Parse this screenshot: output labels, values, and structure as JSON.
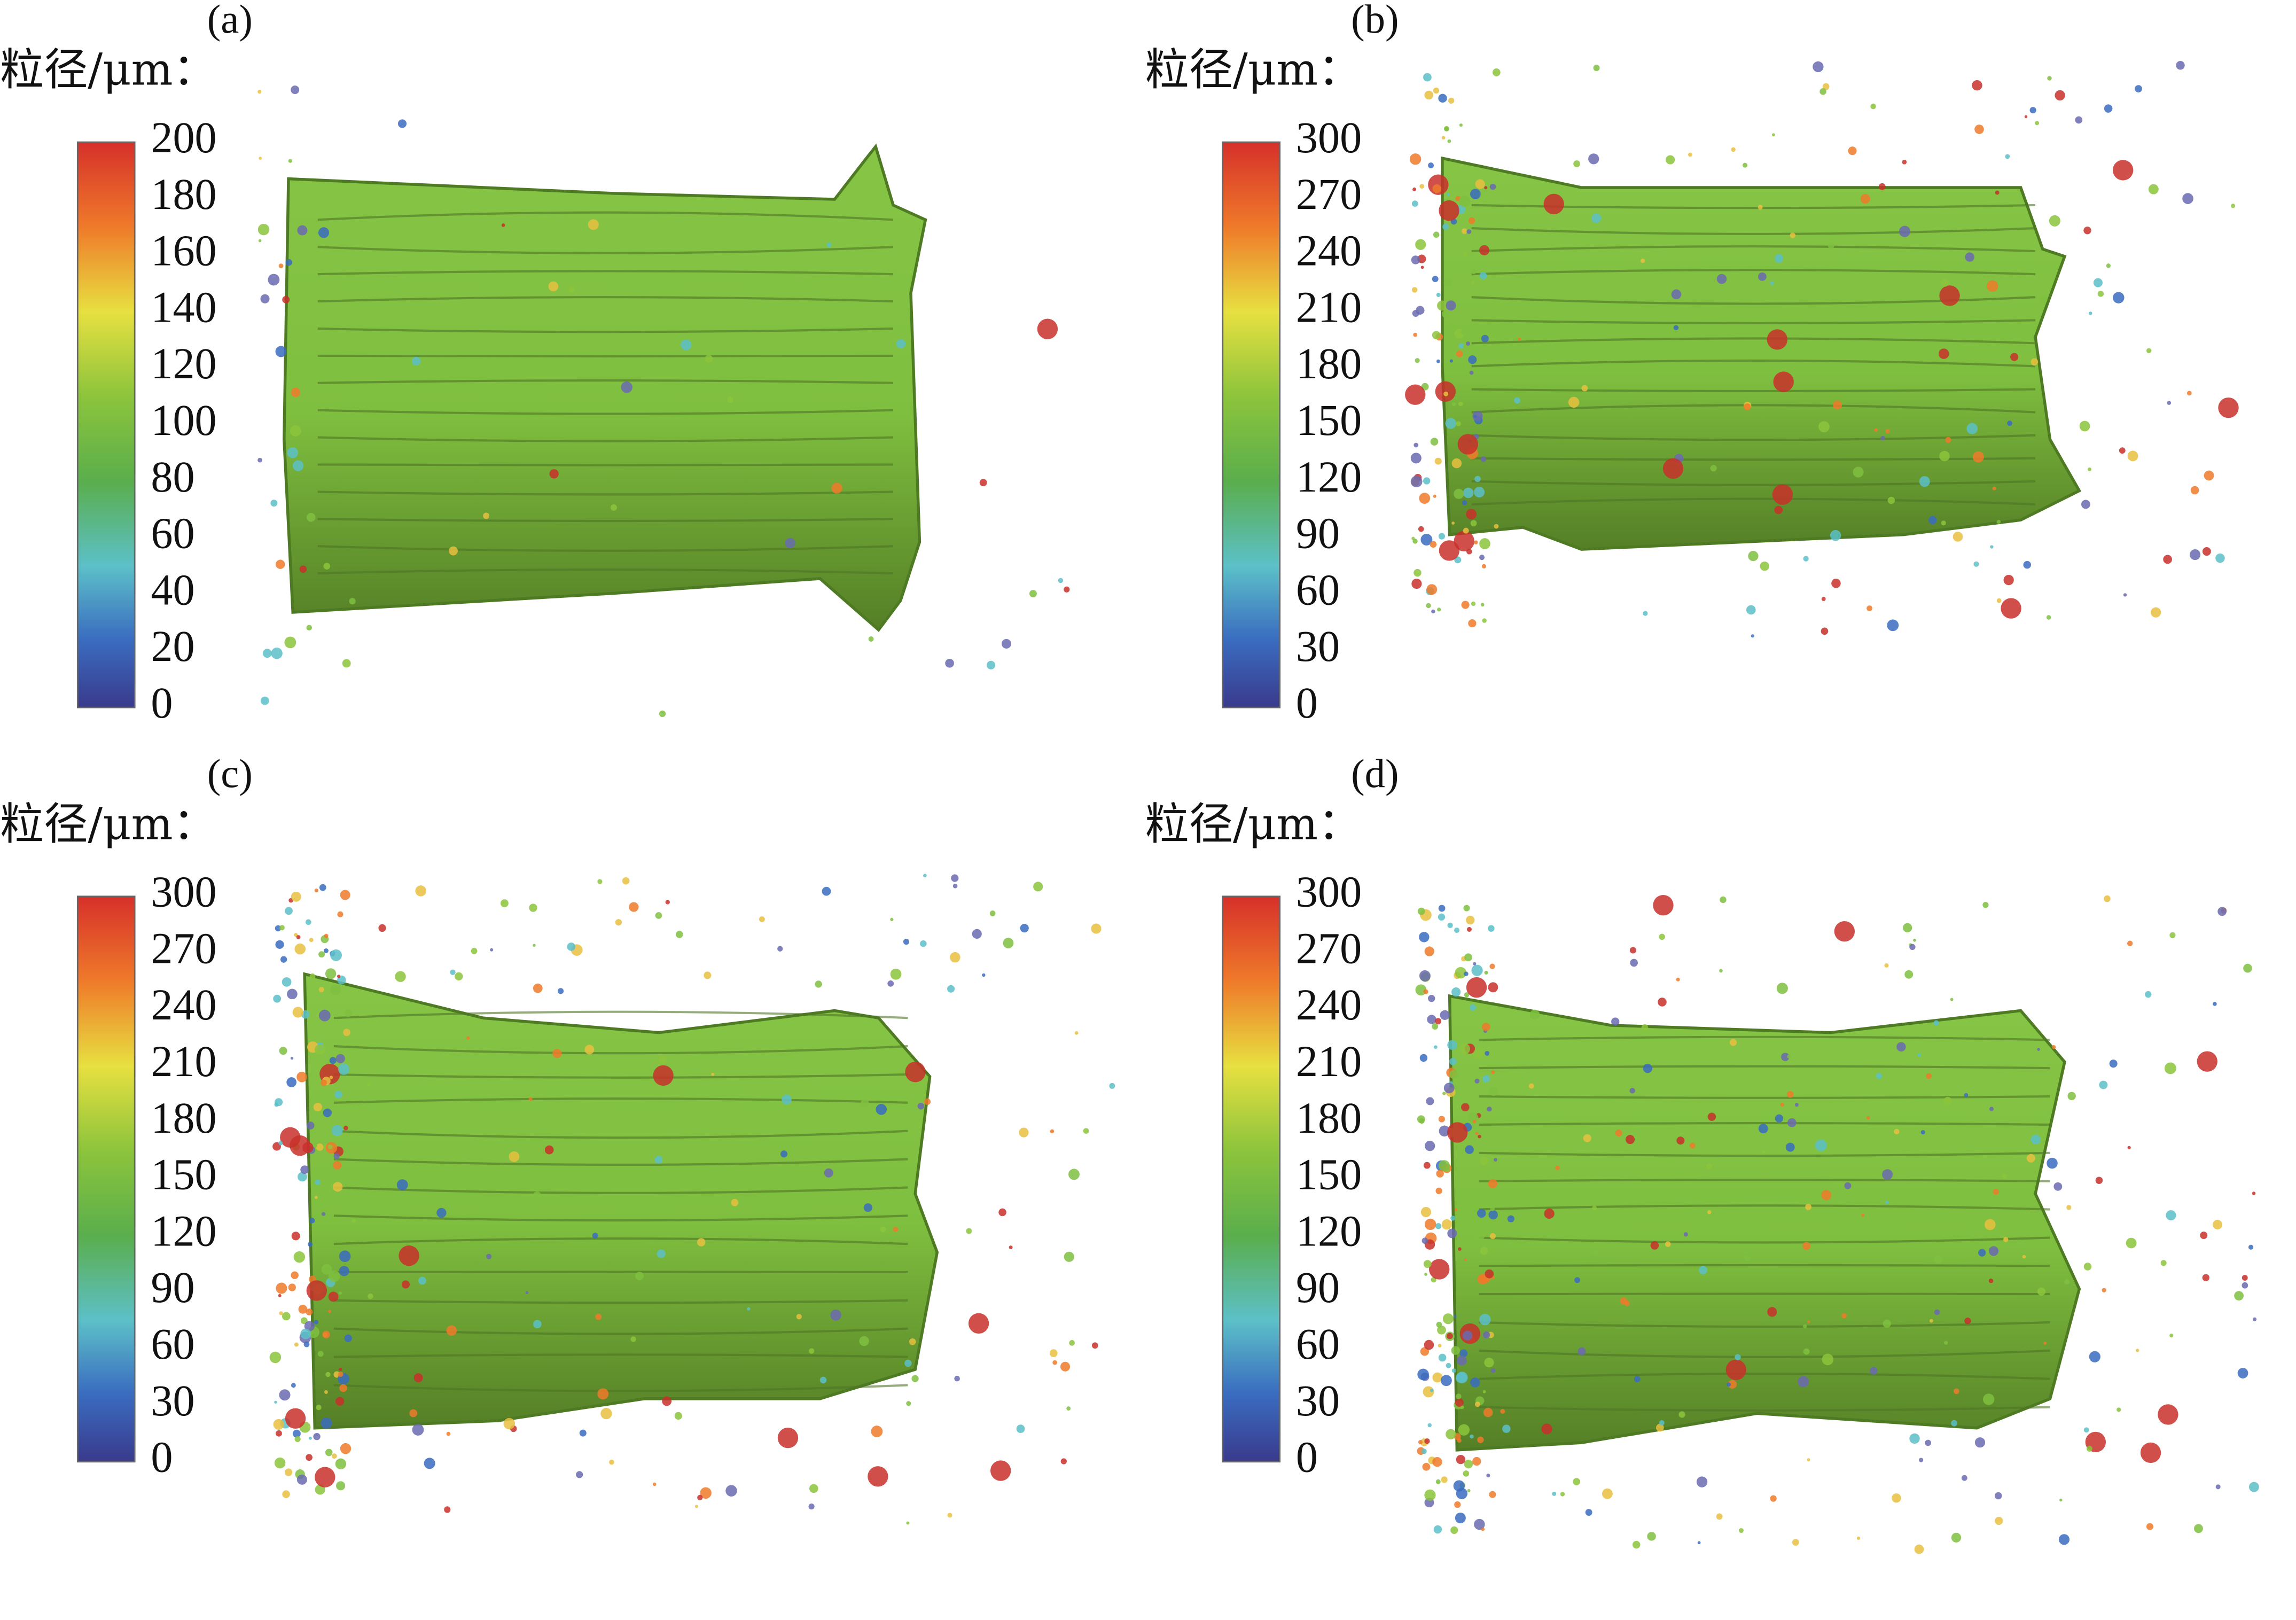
{
  "panels": [
    {
      "label": "(a)",
      "legend_title": "粒径/μm：",
      "colorbar_ticks": [
        200,
        180,
        160,
        140,
        120,
        100,
        80,
        60,
        40,
        20,
        0
      ]
    },
    {
      "label": "(b)",
      "legend_title": "粒径/μm：",
      "colorbar_ticks": [
        300,
        270,
        240,
        210,
        180,
        150,
        120,
        90,
        60,
        30,
        0
      ]
    },
    {
      "label": "(c)",
      "legend_title": "粒径/μm：",
      "colorbar_ticks": [
        300,
        270,
        240,
        210,
        180,
        150,
        120,
        90,
        60,
        30,
        0
      ]
    },
    {
      "label": "(d)",
      "legend_title": "粒径/μm：",
      "colorbar_ticks": [
        300,
        270,
        240,
        210,
        180,
        150,
        120,
        90,
        60,
        30,
        0
      ]
    }
  ]
}
